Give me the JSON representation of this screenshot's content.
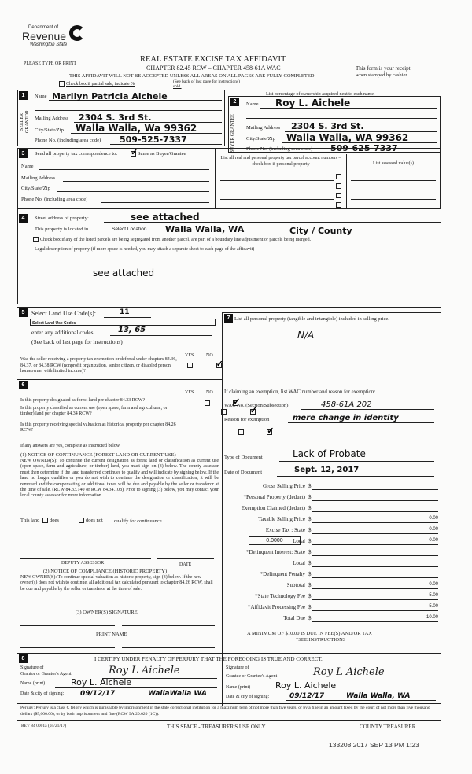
{
  "header": {
    "logo_line1": "Department of",
    "logo_line2": "Revenue",
    "logo_line3": "Washington State",
    "please_type": "PLEASE TYPE OR PRINT",
    "title": "REAL ESTATE EXCISE TAX AFFIDAVIT",
    "chapter": "CHAPTER 82.45 RCW – CHAPTER 458-61A WAC",
    "warning": "THIS AFFIDAVIT WILL NOT BE ACCEPTED UNLESS ALL AREAS ON ALL PAGES ARE FULLY COMPLETED",
    "receipt_line1": "This form is your receipt",
    "receipt_line2": "when stamped by cashier.",
    "partial_sale": "Check box if partial sale, indicate %",
    "partial_sold": "sold.",
    "see_back": "(See back of last page for instructions)",
    "ownership_note": "List percentage of ownership acquired next to each name."
  },
  "seller": {
    "num": "1",
    "side": "SELLER GRANTOR",
    "name_label": "Name",
    "name": "Marilyn Patricia Aichele",
    "address_label": "Mailing Address",
    "address": "2304 S. 3rd St.",
    "city_label": "City/State/Zip",
    "city": "Walla Walla, Wa 99362",
    "phone_label": "Phone No. (including area code)",
    "phone": "509-525-7337"
  },
  "buyer": {
    "num": "2",
    "side": "BUYER GRANTEE",
    "name_label": "Name",
    "name": "Roy L. Aichele",
    "address_label": "Mailing Address",
    "address": "2304 S. 3rd St.",
    "city_label": "City/State/Zip",
    "city": "Walla Walla, WA 99362",
    "phone_label": "Phone No. (including area code)",
    "phone": "509-625-7337"
  },
  "correspondence": {
    "num": "3",
    "label": "Send all property tax correspondence to:",
    "same_as": "Same as Buyer/Grantee",
    "same_checked": true,
    "name_label": "Name",
    "address_label": "Mailing Address",
    "city_label": "City/State/Zip",
    "phone_label": "Phone No. (including area code)",
    "parcel_header": "List all real and personal property tax parcel account numbers – check box if personal property",
    "assessed_header": "List assessed value(s)"
  },
  "property": {
    "num": "4",
    "street_label": "Street address of property:",
    "street": "see attached",
    "located_label": "This property is located in",
    "select_location": "Select Location",
    "location": "Walla Walla, WA",
    "city_county": "City / County",
    "segregated": "Check box if any of the listed parcels are being segregated from another parcel, are part of a boundary line adjustment or parcels being merged.",
    "legal_label": "Legal description of property (if more space is needed, you may attach a separate sheet to each page of the affidavit)",
    "legal": "see attached"
  },
  "land_use": {
    "num": "5",
    "label": "Select Land Use Code(s):",
    "code": "11",
    "select_placeholder": "Select Land Use Codes",
    "additional_label": "enter any additional codes:",
    "additional": "13, 65",
    "see_back": "(See back of last page for instructions)",
    "yes": "YES",
    "no": "NO",
    "question": "Was the seller receiving a property tax exemption or deferral under chapters 84.36, 84.37, or 84.38 RCW (nonprofit organization, senior citizen, or disabled person, homeowner with limited income)?",
    "answer": "NO"
  },
  "designation": {
    "num": "6",
    "yes": "YES",
    "no": "NO",
    "questions": [
      {
        "text": "Is this property designated as forest land per chapter 84.33 RCW?",
        "answer": "NO"
      },
      {
        "text": "Is this property classified as current use (open space, farm and agricultural, or timber) land per chapter 84.34 RCW?",
        "answer": "NO"
      },
      {
        "text": "Is this property receiving special valuation as historical property per chapter 84.26 RCW?",
        "answer": "NO"
      }
    ],
    "if_yes": "If any answers are yes, complete as instructed below.",
    "notice1_title": "(1) NOTICE OF CONTINUANCE (FOREST LAND OR CURRENT USE)",
    "notice1": "NEW OWNER(S): To continue the current designation as forest land or classification as current use (open space, farm and agriculture, or timber) land, you must sign on (3) below. The county assessor must then determine if the land transferred continues to qualify and will indicate by signing below. If the land no longer qualifies or you do not wish to continue the designation or classification, it will be removed and the compensating or additional taxes will be due and payable by the seller or transferor at the time of sale. (RCW 84.33.140 or RCW 84.34.108). Prior to signing (3) below, you may contact your local county assessor for more information.",
    "this_land": "This land",
    "does": "does",
    "does_not": "does not",
    "qualify": "qualify for continuance.",
    "deputy": "DEPUTY ASSESSOR",
    "date": "DATE",
    "notice2_title": "(2) NOTICE OF COMPLIANCE (HISTORIC PROPERTY)",
    "notice2": "NEW OWNER(S): To continue special valuation as historic property, sign (3) below. If the new owner(s) does not wish to continue, all additional tax calculated pursuant to chapter 84.26 RCW, shall be due and payable by the seller or transferor at the time of sale.",
    "owner_sig": "(3) OWNER(S) SIGNATURE",
    "print_name": "PRINT NAME"
  },
  "personal_property": {
    "num": "7",
    "label": "List all personal property (tangible and intangible) included in selling price.",
    "value": "N/A",
    "exemption_label": "If claiming an exemption, list WAC number and reason for exemption:",
    "wac_label": "WAC No. (Section/Subsection)",
    "wac": "458-61A 202",
    "reason_label": "Reason for exemption",
    "reason": "mere change in identity",
    "type_label": "Type of Document",
    "type": "Lack of Probate",
    "date_label": "Date of Document",
    "date": "Sept. 12, 2017",
    "local_rate": "0.0000"
  },
  "fees": [
    {
      "label": "Gross Selling Price",
      "value": ""
    },
    {
      "label": "*Personal Property (deduct)",
      "value": ""
    },
    {
      "label": "Exemption Claimed (deduct)",
      "value": ""
    },
    {
      "label": "Taxable Selling Price",
      "value": "0.00"
    },
    {
      "label": "Excise Tax : State",
      "value": "0.00"
    },
    {
      "label": "Local",
      "value": "0.00"
    },
    {
      "label": "*Delinquent Interest: State",
      "value": ""
    },
    {
      "label": "Local",
      "value": ""
    },
    {
      "label": "*Delinquent Penalty",
      "value": ""
    },
    {
      "label": "Subtotal",
      "value": "0.00"
    },
    {
      "label": "*State Technology Fee",
      "value": "5.00"
    },
    {
      "label": "*Affidavit Processing Fee",
      "value": "5.00"
    },
    {
      "label": "Total Due",
      "value": "10.00"
    }
  ],
  "minimum": "A MINIMUM OF $10.00 IS DUE IN FEE(S) AND/OR TAX",
  "see_instructions": "*SEE INSTRUCTIONS",
  "certify": {
    "num": "8",
    "statement": "I CERTIFY UNDER PENALTY OF PERJURY THAT THE FOREGOING IS TRUE AND CORRECT.",
    "grantor_sig_label1": "Signature of",
    "grantor_sig_label2": "Grantor or Grantor's Agent",
    "grantor_sig": "Roy L Aichele",
    "grantor_name_label": "Name (print)",
    "grantor_name": "Roy L. Aichele",
    "grantor_date_label": "Date & city of signing:",
    "grantor_date": "09/12/17",
    "grantor_city": "WallaWalla WA",
    "grantee_sig_label1": "Signature of",
    "grantee_sig_label2": "Grantee or Grantee's Agent",
    "grantee_sig": "Roy L Aichele",
    "grantee_name_label": "Name (print)",
    "grantee_name": "Roy L. Aichele",
    "grantee_date_label": "Date & city of signing:",
    "grantee_date": "09/12/17",
    "grantee_city": "Walla Walla, WA"
  },
  "footer": {
    "perjury": "Perjury: Perjury is a class C felony which is punishable by imprisonment in the state correctional institution for a maximum term of not more than five years, or by a fine in an amount fixed by the court of not more than five thousand dollars ($5,000.00), or by both imprisonment and fine (RCW 9A.20.020 (1C)).",
    "rev": "REV 84 0001a (04/21/17)",
    "treasurer_space": "THIS SPACE - TREASURER'S USE ONLY",
    "county_treasurer": "COUNTY TREASURER",
    "stamp": "133208 2017 SEP 13 PM 1:23"
  }
}
